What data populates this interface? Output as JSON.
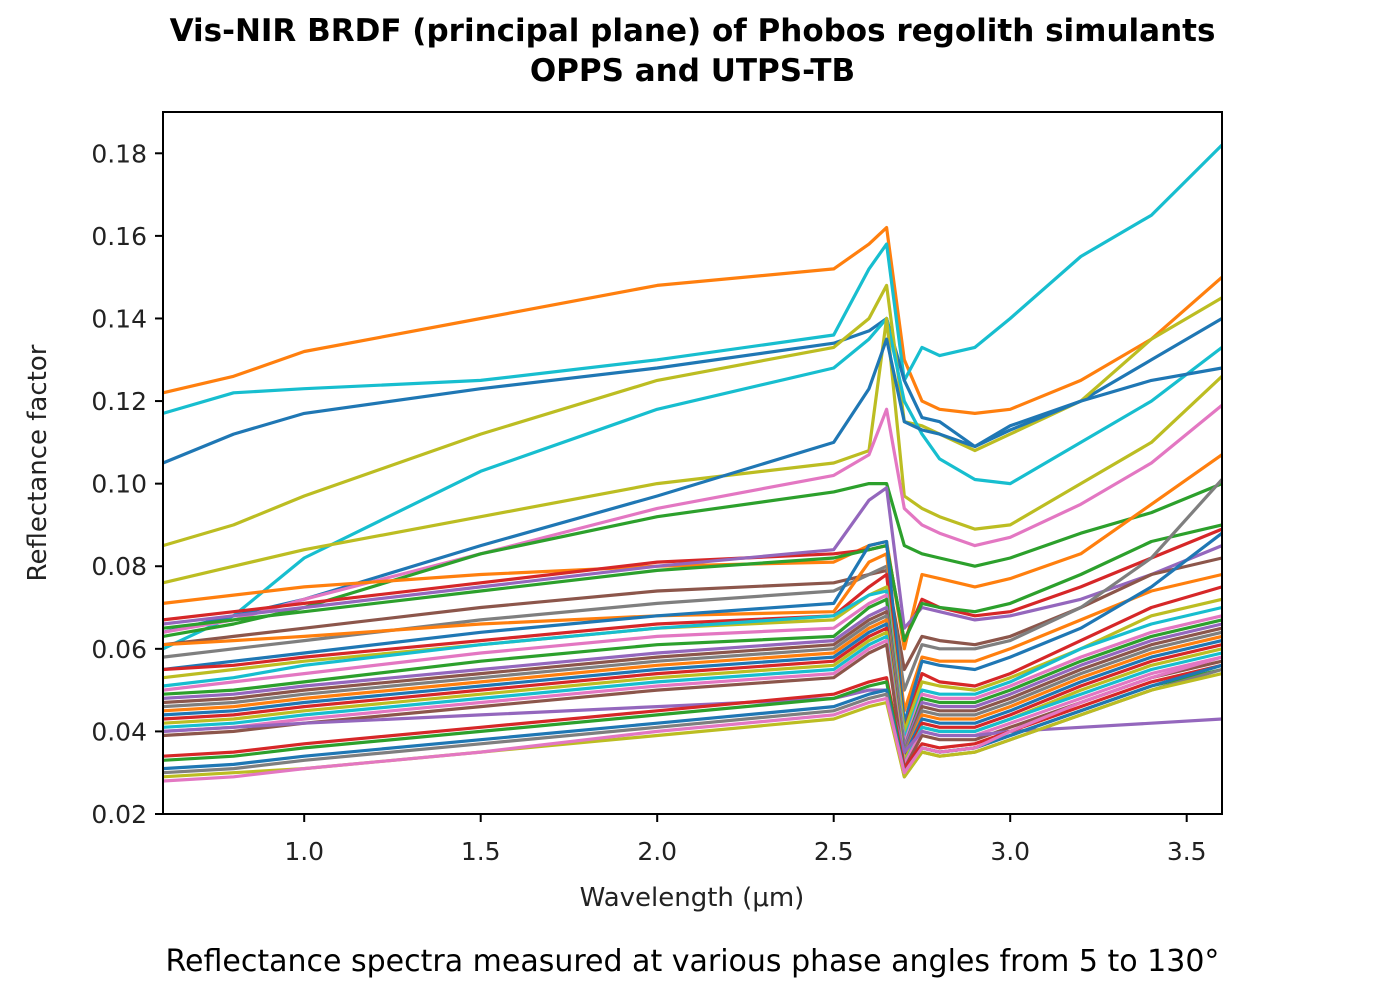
{
  "chart_data": {
    "type": "line",
    "title": "Vis-NIR BRDF (principal plane) of Phobos regolith simulants",
    "subtitle": "OPPS and UTPS-TB",
    "xlabel": "Wavelength (μm)",
    "ylabel": "Reflectance factor",
    "caption": "Reflectance spectra measured at various phase angles from 5 to 130°",
    "xlim": [
      0.6,
      3.6
    ],
    "ylim": [
      0.02,
      0.19
    ],
    "xticks": [
      "1.0",
      "1.5",
      "2.0",
      "2.5",
      "3.0",
      "3.5"
    ],
    "yticks": [
      "0.02",
      "0.04",
      "0.06",
      "0.08",
      "0.10",
      "0.12",
      "0.14",
      "0.16",
      "0.18"
    ],
    "grid": false,
    "legend": "none",
    "x": [
      0.6,
      0.8,
      1.0,
      1.5,
      2.0,
      2.5,
      2.6,
      2.65,
      2.7,
      2.75,
      2.8,
      2.9,
      3.0,
      3.2,
      3.4,
      3.6
    ],
    "series": [
      {
        "color": "#ff7f0e",
        "values": [
          0.122,
          0.126,
          0.132,
          0.14,
          0.148,
          0.152,
          0.158,
          0.162,
          0.13,
          0.12,
          0.118,
          0.117,
          0.118,
          0.125,
          0.135,
          0.15
        ]
      },
      {
        "color": "#17becf",
        "values": [
          0.117,
          0.122,
          0.123,
          0.125,
          0.13,
          0.136,
          0.152,
          0.158,
          0.125,
          0.133,
          0.131,
          0.133,
          0.14,
          0.155,
          0.165,
          0.182
        ]
      },
      {
        "color": "#1f77b4",
        "values": [
          0.105,
          0.112,
          0.117,
          0.123,
          0.128,
          0.134,
          0.137,
          0.14,
          0.125,
          0.116,
          0.115,
          0.109,
          0.114,
          0.12,
          0.13,
          0.14
        ]
      },
      {
        "color": "#bcbd22",
        "values": [
          0.085,
          0.09,
          0.097,
          0.112,
          0.125,
          0.133,
          0.14,
          0.148,
          0.115,
          0.114,
          0.112,
          0.108,
          0.112,
          0.12,
          0.135,
          0.145
        ]
      },
      {
        "color": "#17becf",
        "values": [
          0.06,
          0.068,
          0.082,
          0.103,
          0.118,
          0.128,
          0.135,
          0.14,
          0.12,
          0.112,
          0.106,
          0.101,
          0.1,
          0.11,
          0.12,
          0.133
        ]
      },
      {
        "color": "#bcbd22",
        "values": [
          0.076,
          0.08,
          0.084,
          0.092,
          0.1,
          0.105,
          0.108,
          0.14,
          0.097,
          0.094,
          0.092,
          0.089,
          0.09,
          0.1,
          0.11,
          0.126
        ]
      },
      {
        "color": "#1f77b4",
        "values": [
          0.064,
          0.068,
          0.072,
          0.085,
          0.097,
          0.11,
          0.123,
          0.135,
          0.115,
          0.113,
          0.112,
          0.109,
          0.113,
          0.12,
          0.125,
          0.128
        ]
      },
      {
        "color": "#e377c2",
        "values": [
          0.064,
          0.067,
          0.072,
          0.083,
          0.094,
          0.102,
          0.107,
          0.118,
          0.094,
          0.09,
          0.088,
          0.085,
          0.087,
          0.095,
          0.105,
          0.119
        ]
      },
      {
        "color": "#2ca02c",
        "values": [
          0.063,
          0.066,
          0.07,
          0.083,
          0.092,
          0.098,
          0.1,
          0.1,
          0.085,
          0.083,
          0.082,
          0.08,
          0.082,
          0.088,
          0.093,
          0.1
        ]
      },
      {
        "color": "#ff7f0e",
        "values": [
          0.071,
          0.073,
          0.075,
          0.078,
          0.08,
          0.081,
          0.085,
          0.086,
          0.06,
          0.078,
          0.077,
          0.075,
          0.077,
          0.083,
          0.095,
          0.107
        ]
      },
      {
        "color": "#d62728",
        "values": [
          0.067,
          0.069,
          0.071,
          0.076,
          0.081,
          0.083,
          0.084,
          0.085,
          0.062,
          0.072,
          0.07,
          0.068,
          0.069,
          0.075,
          0.082,
          0.089
        ]
      },
      {
        "color": "#9467bd",
        "values": [
          0.066,
          0.068,
          0.07,
          0.075,
          0.08,
          0.084,
          0.096,
          0.099,
          0.065,
          0.07,
          0.069,
          0.067,
          0.068,
          0.072,
          0.078,
          0.085
        ]
      },
      {
        "color": "#2ca02c",
        "values": [
          0.065,
          0.067,
          0.069,
          0.074,
          0.079,
          0.082,
          0.084,
          0.085,
          0.062,
          0.071,
          0.07,
          0.069,
          0.071,
          0.078,
          0.086,
          0.09
        ]
      },
      {
        "color": "#8c564b",
        "values": [
          0.061,
          0.063,
          0.065,
          0.07,
          0.074,
          0.076,
          0.078,
          0.079,
          0.055,
          0.063,
          0.062,
          0.061,
          0.063,
          0.07,
          0.078,
          0.082
        ]
      },
      {
        "color": "#7f7f7f",
        "values": [
          0.058,
          0.06,
          0.062,
          0.067,
          0.071,
          0.074,
          0.078,
          0.08,
          0.05,
          0.061,
          0.06,
          0.06,
          0.062,
          0.07,
          0.082,
          0.101
        ]
      },
      {
        "color": "#ff7f0e",
        "values": [
          0.061,
          0.062,
          0.063,
          0.066,
          0.068,
          0.069,
          0.081,
          0.083,
          0.045,
          0.058,
          0.057,
          0.057,
          0.06,
          0.067,
          0.074,
          0.078
        ]
      },
      {
        "color": "#1f77b4",
        "values": [
          0.055,
          0.057,
          0.059,
          0.064,
          0.068,
          0.071,
          0.085,
          0.086,
          0.042,
          0.057,
          0.056,
          0.055,
          0.058,
          0.065,
          0.075,
          0.088
        ]
      },
      {
        "color": "#d62728",
        "values": [
          0.055,
          0.056,
          0.058,
          0.062,
          0.066,
          0.068,
          0.075,
          0.078,
          0.04,
          0.054,
          0.052,
          0.051,
          0.054,
          0.062,
          0.07,
          0.075
        ]
      },
      {
        "color": "#bcbd22",
        "values": [
          0.053,
          0.055,
          0.057,
          0.061,
          0.065,
          0.067,
          0.073,
          0.075,
          0.04,
          0.052,
          0.051,
          0.05,
          0.053,
          0.06,
          0.068,
          0.072
        ]
      },
      {
        "color": "#17becf",
        "values": [
          0.051,
          0.053,
          0.056,
          0.061,
          0.065,
          0.068,
          0.073,
          0.074,
          0.038,
          0.05,
          0.049,
          0.049,
          0.052,
          0.06,
          0.066,
          0.07
        ]
      },
      {
        "color": "#e377c2",
        "values": [
          0.05,
          0.052,
          0.054,
          0.059,
          0.063,
          0.065,
          0.071,
          0.073,
          0.037,
          0.049,
          0.048,
          0.048,
          0.051,
          0.058,
          0.064,
          0.068
        ]
      },
      {
        "color": "#2ca02c",
        "values": [
          0.049,
          0.05,
          0.052,
          0.057,
          0.061,
          0.063,
          0.07,
          0.072,
          0.036,
          0.048,
          0.047,
          0.047,
          0.05,
          0.057,
          0.063,
          0.067
        ]
      },
      {
        "color": "#9467bd",
        "values": [
          0.048,
          0.049,
          0.051,
          0.055,
          0.059,
          0.062,
          0.068,
          0.07,
          0.036,
          0.047,
          0.046,
          0.046,
          0.049,
          0.056,
          0.062,
          0.066
        ]
      },
      {
        "color": "#8c564b",
        "values": [
          0.047,
          0.048,
          0.05,
          0.054,
          0.058,
          0.061,
          0.067,
          0.069,
          0.035,
          0.046,
          0.045,
          0.045,
          0.048,
          0.055,
          0.061,
          0.065
        ]
      },
      {
        "color": "#7f7f7f",
        "values": [
          0.046,
          0.047,
          0.049,
          0.053,
          0.057,
          0.06,
          0.066,
          0.068,
          0.035,
          0.045,
          0.044,
          0.044,
          0.047,
          0.054,
          0.06,
          0.064
        ]
      },
      {
        "color": "#ff7f0e",
        "values": [
          0.045,
          0.046,
          0.048,
          0.052,
          0.056,
          0.059,
          0.065,
          0.067,
          0.034,
          0.044,
          0.043,
          0.043,
          0.046,
          0.053,
          0.059,
          0.063
        ]
      },
      {
        "color": "#1f77b4",
        "values": [
          0.044,
          0.045,
          0.047,
          0.051,
          0.055,
          0.058,
          0.064,
          0.066,
          0.034,
          0.043,
          0.042,
          0.042,
          0.045,
          0.052,
          0.058,
          0.062
        ]
      },
      {
        "color": "#d62728",
        "values": [
          0.043,
          0.044,
          0.046,
          0.05,
          0.054,
          0.057,
          0.063,
          0.065,
          0.033,
          0.042,
          0.041,
          0.041,
          0.044,
          0.051,
          0.057,
          0.061
        ]
      },
      {
        "color": "#bcbd22",
        "values": [
          0.042,
          0.043,
          0.045,
          0.049,
          0.053,
          0.056,
          0.062,
          0.064,
          0.033,
          0.041,
          0.04,
          0.04,
          0.043,
          0.05,
          0.056,
          0.06
        ]
      },
      {
        "color": "#17becf",
        "values": [
          0.041,
          0.042,
          0.044,
          0.048,
          0.052,
          0.055,
          0.061,
          0.063,
          0.032,
          0.041,
          0.04,
          0.04,
          0.043,
          0.049,
          0.055,
          0.059
        ]
      },
      {
        "color": "#e377c2",
        "values": [
          0.04,
          0.041,
          0.043,
          0.047,
          0.051,
          0.054,
          0.06,
          0.062,
          0.032,
          0.04,
          0.039,
          0.039,
          0.042,
          0.048,
          0.054,
          0.058
        ]
      },
      {
        "color": "#8c564b",
        "values": [
          0.039,
          0.04,
          0.042,
          0.046,
          0.05,
          0.053,
          0.059,
          0.061,
          0.031,
          0.039,
          0.038,
          0.038,
          0.041,
          0.047,
          0.053,
          0.057
        ]
      },
      {
        "color": "#9467bd",
        "values": [
          0.04,
          0.041,
          0.042,
          0.044,
          0.046,
          0.048,
          0.05,
          0.05,
          0.035,
          0.04,
          0.039,
          0.039,
          0.04,
          0.041,
          0.042,
          0.043
        ]
      },
      {
        "color": "#d62728",
        "values": [
          0.034,
          0.035,
          0.037,
          0.041,
          0.045,
          0.049,
          0.052,
          0.053,
          0.031,
          0.037,
          0.036,
          0.037,
          0.04,
          0.046,
          0.052,
          0.056
        ]
      },
      {
        "color": "#2ca02c",
        "values": [
          0.033,
          0.034,
          0.036,
          0.04,
          0.044,
          0.048,
          0.051,
          0.052,
          0.03,
          0.036,
          0.035,
          0.036,
          0.039,
          0.045,
          0.051,
          0.055
        ]
      },
      {
        "color": "#1f77b4",
        "values": [
          0.031,
          0.032,
          0.034,
          0.038,
          0.042,
          0.046,
          0.049,
          0.05,
          0.03,
          0.036,
          0.035,
          0.036,
          0.039,
          0.045,
          0.051,
          0.056
        ]
      },
      {
        "color": "#7f7f7f",
        "values": [
          0.03,
          0.031,
          0.033,
          0.037,
          0.041,
          0.045,
          0.048,
          0.049,
          0.029,
          0.035,
          0.034,
          0.035,
          0.038,
          0.044,
          0.05,
          0.055
        ]
      },
      {
        "color": "#bcbd22",
        "values": [
          0.029,
          0.03,
          0.031,
          0.035,
          0.039,
          0.043,
          0.046,
          0.047,
          0.029,
          0.035,
          0.034,
          0.035,
          0.038,
          0.044,
          0.05,
          0.054
        ]
      },
      {
        "color": "#e377c2",
        "values": [
          0.028,
          0.029,
          0.031,
          0.035,
          0.04,
          0.044,
          0.047,
          0.048,
          0.03,
          0.036,
          0.035,
          0.036,
          0.04,
          0.047,
          0.053,
          0.058
        ]
      }
    ]
  }
}
